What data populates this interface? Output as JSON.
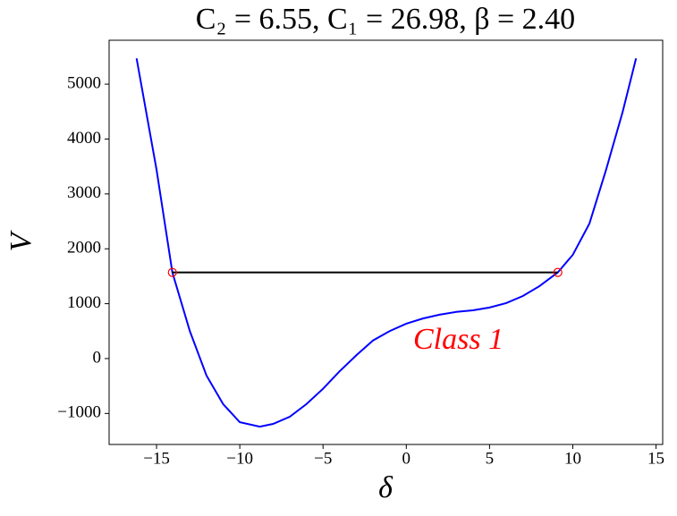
{
  "chart_data": {
    "type": "line",
    "title": "C₂ = 6.55,  C₁ = 26.98,  β = 2.40",
    "x_label": "δ",
    "y_label": "V",
    "annotation": "Class 1",
    "annotation_color": "#ff0000",
    "x": [
      -16.2,
      -15,
      -14.05,
      -13,
      -12,
      -11,
      -10,
      -8.8,
      -8,
      -7,
      -6,
      -5,
      -4,
      -3,
      -2,
      -1,
      0,
      1,
      2,
      3,
      4,
      5,
      6,
      7,
      8,
      9.1,
      10,
      11,
      12,
      13,
      13.8
    ],
    "series": [
      {
        "color": "#0000ff",
        "values": [
          5470,
          3440,
          1570,
          500,
          -310,
          -830,
          -1160,
          -1240,
          -1190,
          -1060,
          -830,
          -550,
          -230,
          60,
          330,
          500,
          635,
          730,
          800,
          850,
          880,
          930,
          1010,
          1140,
          1320,
          1570,
          1890,
          2460,
          3440,
          4500,
          5470
        ]
      }
    ],
    "level_line": {
      "x": [
        -14.05,
        9.1
      ],
      "values": [
        1570,
        1570
      ],
      "color": "#000000",
      "marker_color": "#ff0000"
    },
    "xlim": [
      -17.85,
      15.4
    ],
    "ylim": [
      -1565,
      5800
    ],
    "xticks": [
      {
        "value": -15,
        "label": "−15"
      },
      {
        "value": -10,
        "label": "−10"
      },
      {
        "value": -5,
        "label": "−5"
      },
      0,
      5,
      10,
      15
    ],
    "yticks": [
      {
        "value": -1000,
        "label": "−1000"
      },
      0,
      1000,
      2000,
      3000,
      4000,
      5000
    ]
  }
}
